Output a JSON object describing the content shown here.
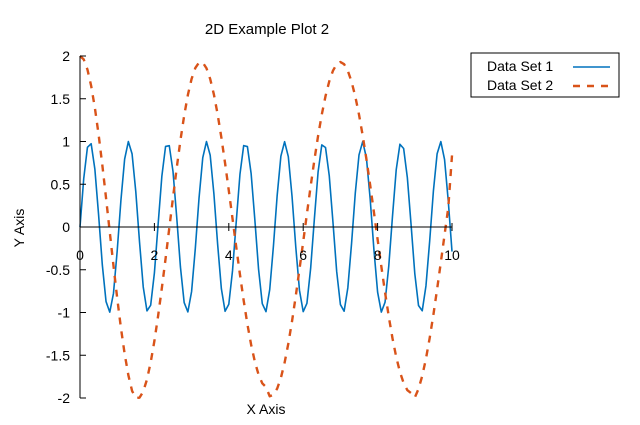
{
  "chart_data": {
    "type": "line",
    "title": "2D Example Plot 2",
    "xlabel": "X Axis",
    "ylabel": "Y Axis",
    "xlim": [
      0,
      10
    ],
    "ylim": [
      -2,
      2
    ],
    "grid": false,
    "legend_position": "top-right-outside",
    "x_ticks": [
      "0",
      "2",
      "4",
      "6",
      "8",
      "10"
    ],
    "y_ticks": [
      "-2",
      "-1.5",
      "-1",
      "-0.5",
      "0",
      "0.5",
      "1",
      "1.5",
      "2"
    ],
    "series": [
      {
        "name": "Data Set 1",
        "color": "#0072bd",
        "style": "solid",
        "x": [
          0.0,
          0.1,
          0.2,
          0.3,
          0.4,
          0.5,
          0.6,
          0.7,
          0.8,
          0.9,
          1.0,
          1.1,
          1.2,
          1.3,
          1.4,
          1.5,
          1.6,
          1.7,
          1.8,
          1.9,
          2.0,
          2.1,
          2.2,
          2.3,
          2.4,
          2.5,
          2.6,
          2.7,
          2.8,
          2.9,
          3.0,
          3.1,
          3.2,
          3.3,
          3.4,
          3.5,
          3.6,
          3.7,
          3.8,
          3.9,
          4.0,
          4.1,
          4.2,
          4.3,
          4.4,
          4.5,
          4.6,
          4.7,
          4.8,
          4.9,
          5.0,
          5.1,
          5.2,
          5.3,
          5.4,
          5.5,
          5.6,
          5.7,
          5.8,
          5.9,
          6.0,
          6.1,
          6.2,
          6.3,
          6.4,
          6.5,
          6.6,
          6.7,
          6.8,
          6.9,
          7.0,
          7.1,
          7.2,
          7.3,
          7.4,
          7.5,
          7.6,
          7.7,
          7.8,
          7.9,
          8.0,
          8.1,
          8.2,
          8.3,
          8.4,
          8.5,
          8.6,
          8.7,
          8.8,
          8.9,
          9.0,
          9.1,
          9.2,
          9.3,
          9.4,
          9.5,
          9.6,
          9.7,
          9.8,
          9.9,
          10.0
        ],
        "y": [
          0.0,
          0.565,
          0.932,
          0.974,
          0.675,
          0.141,
          -0.443,
          -0.872,
          -0.996,
          -0.776,
          -0.279,
          0.312,
          0.795,
          0.999,
          0.855,
          0.412,
          -0.174,
          -0.701,
          -0.981,
          -0.914,
          -0.537,
          0.031,
          0.592,
          0.942,
          0.951,
          0.65,
          0.113,
          -0.468,
          -0.884,
          -0.993,
          -0.754,
          -0.25,
          0.34,
          0.811,
          0.999,
          0.839,
          0.385,
          -0.202,
          -0.721,
          -0.986,
          -0.904,
          -0.511,
          0.06,
          0.617,
          0.952,
          0.941,
          0.626,
          0.085,
          -0.493,
          -0.897,
          -0.99,
          -0.733,
          -0.222,
          0.368,
          0.828,
          0.998,
          0.822,
          0.358,
          -0.231,
          -0.741,
          -0.99,
          -0.893,
          -0.484,
          0.093,
          0.643,
          0.96,
          0.93,
          0.601,
          0.056,
          -0.52,
          -0.907,
          -0.985,
          -0.71,
          -0.193,
          0.395,
          0.843,
          0.999,
          0.806,
          0.33,
          -0.26,
          -0.761,
          -0.995,
          -0.88,
          -0.458,
          0.123,
          0.668,
          0.968,
          0.918,
          0.576,
          0.027,
          -0.546,
          -0.918,
          -0.98,
          -0.688,
          -0.164,
          0.421,
          0.857,
          0.999,
          0.789,
          0.302,
          -0.288
        ]
      },
      {
        "name": "Data Set 2",
        "color": "#d95319",
        "style": "dashed",
        "x": [
          0.0,
          0.1,
          0.2,
          0.3,
          0.4,
          0.5,
          0.6,
          0.7,
          0.8,
          0.9,
          1.0,
          1.1,
          1.2,
          1.3,
          1.4,
          1.5,
          1.6,
          1.7,
          1.8,
          1.9,
          2.0,
          2.1,
          2.2,
          2.3,
          2.4,
          2.5,
          2.6,
          2.7,
          2.8,
          2.9,
          3.0,
          3.1,
          3.2,
          3.3,
          3.4,
          3.5,
          3.6,
          3.7,
          3.8,
          3.9,
          4.0,
          4.1,
          4.2,
          4.3,
          4.4,
          4.5,
          4.6,
          4.7,
          4.8,
          4.9,
          5.0,
          5.1,
          5.2,
          5.3,
          5.4,
          5.5,
          5.6,
          5.7,
          5.8,
          5.9,
          6.0,
          6.1,
          6.2,
          6.3,
          6.4,
          6.5,
          6.6,
          6.7,
          6.8,
          6.9,
          7.0,
          7.1,
          7.2,
          7.3,
          7.4,
          7.5,
          7.6,
          7.7,
          7.8,
          7.9,
          8.0,
          8.1,
          8.2,
          8.3,
          8.4,
          8.5,
          8.6,
          8.7,
          8.8,
          8.9,
          9.0,
          9.1,
          9.2,
          9.3,
          9.4,
          9.5,
          9.6,
          9.7,
          9.8,
          9.9,
          10.0
        ],
        "y": [
          2.0,
          1.96,
          1.842,
          1.651,
          1.393,
          1.081,
          0.725,
          0.339,
          -0.058,
          -0.453,
          -0.832,
          -1.18,
          -1.484,
          -1.733,
          -1.917,
          -2.0,
          -1.996,
          -1.924,
          -1.784,
          -1.583,
          -1.332,
          -1.039,
          -0.715,
          -0.371,
          -0.014,
          0.343,
          0.691,
          1.015,
          1.302,
          1.545,
          1.733,
          1.86,
          1.924,
          1.924,
          1.857,
          1.731,
          1.549,
          1.318,
          1.046,
          0.746,
          0.426,
          0.098,
          -0.234,
          -0.556,
          -0.86,
          -1.137,
          -1.376,
          -1.575,
          -1.727,
          -1.828,
          -1.872,
          -1.98,
          -1.962,
          -1.89,
          -1.765,
          -1.587,
          -1.364,
          -1.101,
          -0.807,
          -0.494,
          -0.172,
          0.155,
          0.476,
          0.782,
          1.065,
          1.316,
          1.531,
          1.703,
          1.828,
          1.905,
          1.93,
          1.904,
          1.826,
          1.699,
          1.528,
          1.315,
          1.068,
          0.791,
          0.491,
          0.176,
          -0.144,
          -0.46,
          -0.764,
          -1.047,
          -1.301,
          -1.519,
          -1.695,
          -1.826,
          -1.909,
          -1.943,
          -1.995,
          -1.894,
          -1.741,
          -1.54,
          -1.299,
          -1.025,
          -0.726,
          -0.412,
          -0.091,
          0.227,
          0.837
        ]
      }
    ]
  }
}
